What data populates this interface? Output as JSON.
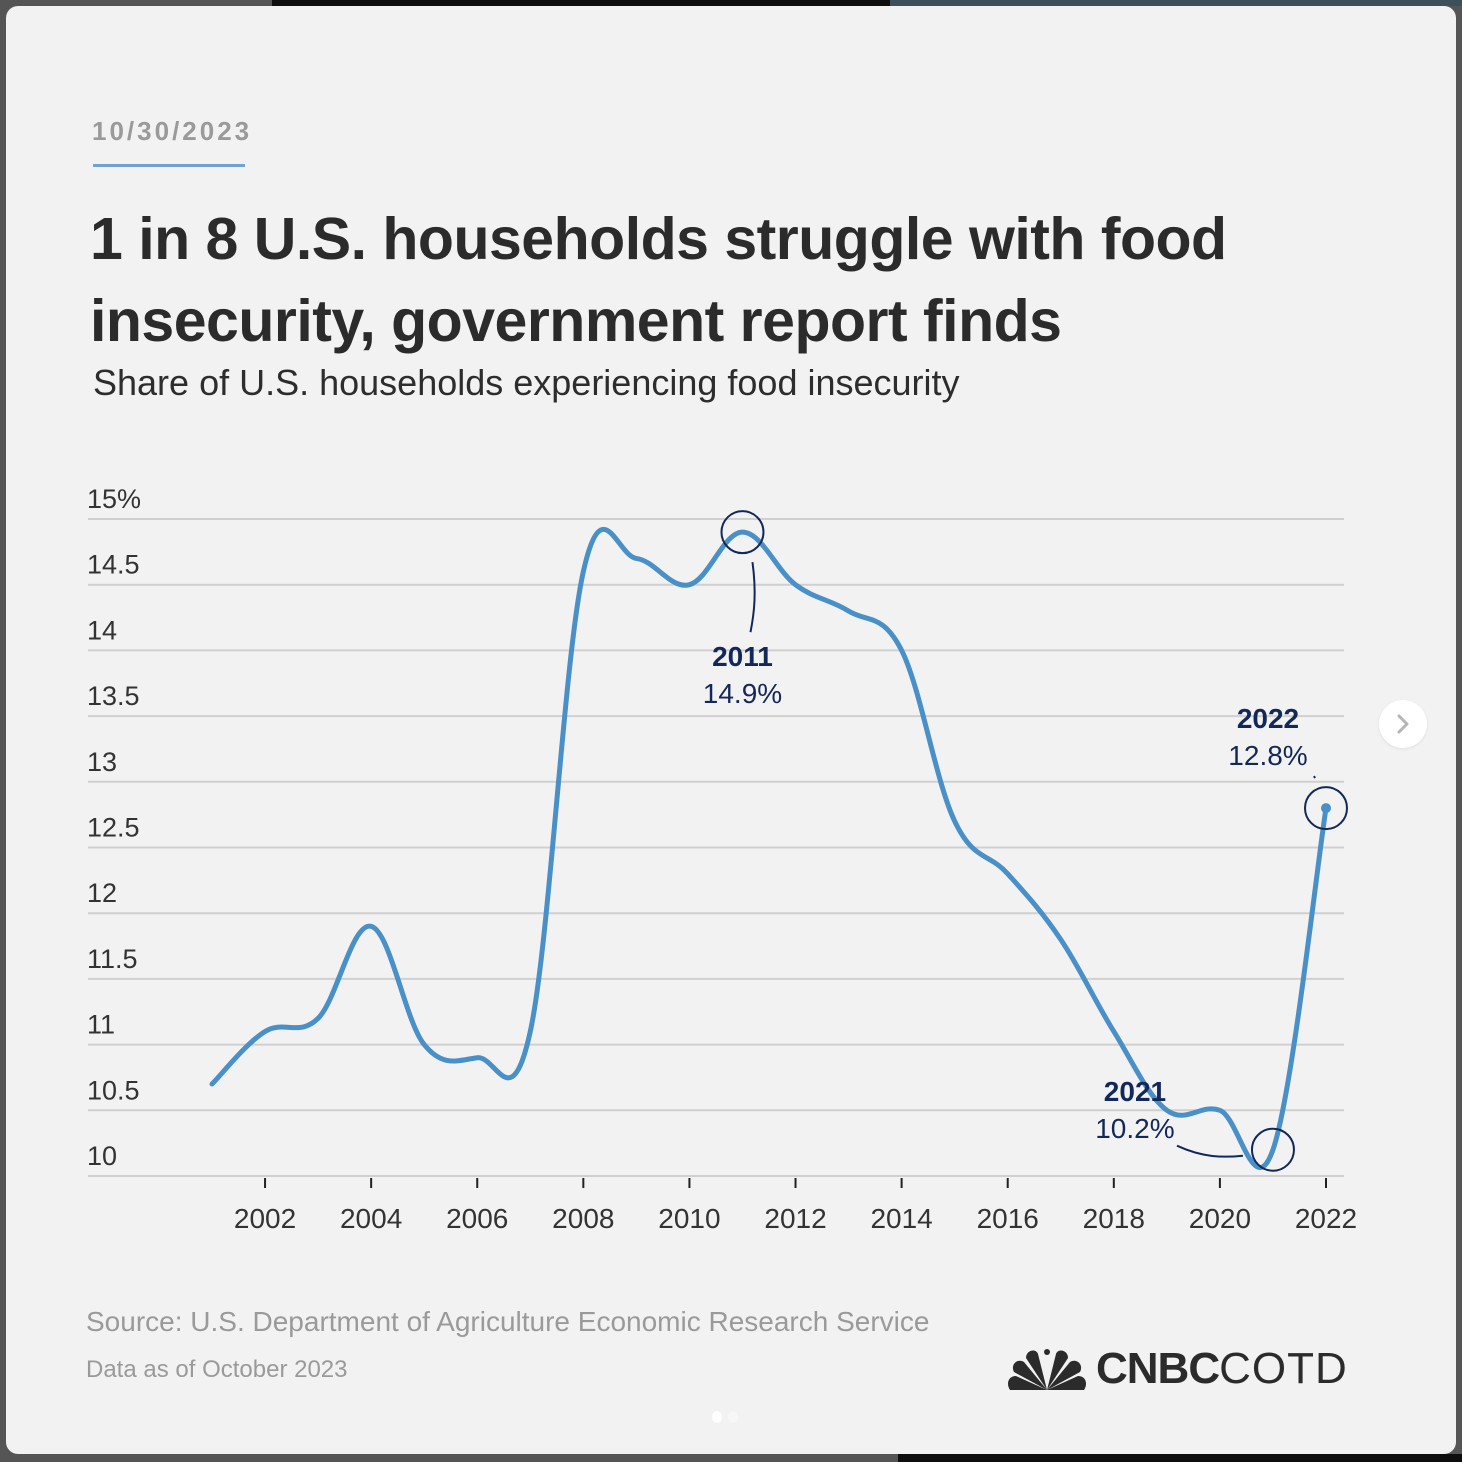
{
  "header": {
    "date": "10/30/2023",
    "title": "1 in 8 U.S. households struggle with food insecurity, government report finds",
    "subtitle": "Share of U.S. households experiencing food insecurity"
  },
  "footer": {
    "source": "Source: U.S. Department of Agriculture Economic Research Service",
    "data_as_of": "Data as of October 2023",
    "logo_brand": "CNBC",
    "logo_suffix": "COTD",
    "logo_icon": "peacock-icon"
  },
  "carousel": {
    "next_icon": "chevron-right-icon",
    "page_count": 2,
    "active_page": 1
  },
  "colors": {
    "line": "#4a90c8",
    "annotation": "#13285a",
    "grid": "#d0d0d0",
    "accent_underline": "#6fa3d6"
  },
  "chart_data": {
    "type": "line",
    "title": "1 in 8 U.S. households struggle with food insecurity, government report finds",
    "subtitle": "Share of U.S. households experiencing food insecurity",
    "xlabel": "",
    "ylabel": "",
    "ylim": [
      10,
      15
    ],
    "xlim": [
      2001,
      2022
    ],
    "grid": true,
    "y_ticks": [
      15,
      14.5,
      14,
      13.5,
      13,
      12.5,
      12,
      11.5,
      11,
      10.5,
      10
    ],
    "y_tick_labels": [
      "15%",
      "14.5",
      "14",
      "13.5",
      "13",
      "12.5",
      "12",
      "11.5",
      "11",
      "10.5",
      "10"
    ],
    "x_ticks": [
      2002,
      2004,
      2006,
      2008,
      2010,
      2012,
      2014,
      2016,
      2018,
      2020,
      2022
    ],
    "x_tick_labels": [
      "2002",
      "2004",
      "2006",
      "2008",
      "2010",
      "2012",
      "2014",
      "2016",
      "2018",
      "2020",
      "2022"
    ],
    "series": [
      {
        "name": "Share of U.S. households experiencing food insecurity",
        "x": [
          2001,
          2002,
          2003,
          2004,
          2005,
          2006,
          2007,
          2008,
          2009,
          2010,
          2011,
          2012,
          2013,
          2014,
          2015,
          2016,
          2017,
          2018,
          2019,
          2020,
          2021,
          2022
        ],
        "values": [
          10.7,
          11.1,
          11.2,
          11.9,
          11.0,
          10.9,
          11.1,
          14.6,
          14.7,
          14.5,
          14.9,
          14.5,
          14.3,
          14.0,
          12.7,
          12.3,
          11.8,
          11.1,
          10.5,
          10.5,
          10.2,
          12.8
        ]
      }
    ],
    "annotations": [
      {
        "year": "2011",
        "value": "14.9%",
        "x": 2011,
        "y": 14.9
      },
      {
        "year": "2021",
        "value": "10.2%",
        "x": 2021,
        "y": 10.2
      },
      {
        "year": "2022",
        "value": "12.8%",
        "x": 2022,
        "y": 12.8
      }
    ]
  }
}
